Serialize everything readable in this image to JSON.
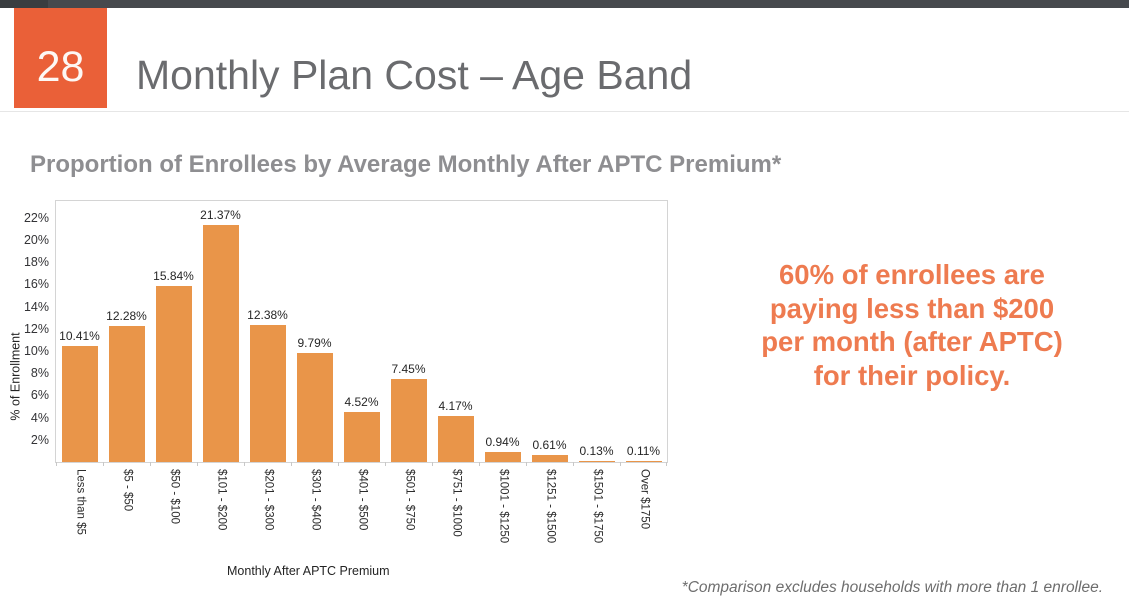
{
  "header": {
    "slide_number": "28",
    "title": "Monthly Plan Cost – Age Band"
  },
  "chart_section": {
    "title": "Proportion of Enrollees by Average Monthly After APTC Premium*"
  },
  "chart_data": {
    "type": "bar",
    "title": "Proportion of Enrollees by Average Monthly After APTC Premium*",
    "categories": [
      "Less than $5",
      "$5 - $50",
      "$50 - $100",
      "$101 - $200",
      "$201 - $300",
      "$301 - $400",
      "$401 - $500",
      "$501 - $750",
      "$751 - $1000",
      "$1001 - $1250",
      "$1251 - $1500",
      "$1501 - $1750",
      "Over $1750"
    ],
    "values": [
      10.41,
      12.28,
      15.84,
      21.37,
      12.38,
      9.79,
      4.52,
      7.45,
      4.17,
      0.94,
      0.61,
      0.13,
      0.11
    ],
    "value_labels": [
      "10.41%",
      "12.28%",
      "15.84%",
      "21.37%",
      "12.38%",
      "9.79%",
      "4.52%",
      "7.45%",
      "4.17%",
      "0.94%",
      "0.61%",
      "0.13%",
      "0.11%"
    ],
    "xlabel": "Monthly After APTC Premium",
    "ylabel": "% of Enrollment",
    "ylim": [
      0,
      23.5
    ],
    "ytick_values": [
      2,
      4,
      6,
      8,
      10,
      12,
      14,
      16,
      18,
      20,
      22
    ],
    "ytick_labels": [
      "2%",
      "4%",
      "6%",
      "8%",
      "10%",
      "12%",
      "14%",
      "16%",
      "18%",
      "20%",
      "22%"
    ],
    "grid": false,
    "legend": "none",
    "bar_color": "#E99549"
  },
  "callout": {
    "lines": [
      "60% of enrollees are",
      "paying less than $200",
      "per month (after APTC)",
      "for their policy."
    ]
  },
  "footnote": {
    "text": "*Comparison excludes households with more than 1 enrollee."
  },
  "colors": {
    "topbar": "#46494D",
    "badge_orange": "#EA6038",
    "bar_orange": "#E99549",
    "callout_orange": "#EE7B50",
    "title_gray": "#6A6B6E",
    "chart_title_gray": "#8E8E91"
  }
}
